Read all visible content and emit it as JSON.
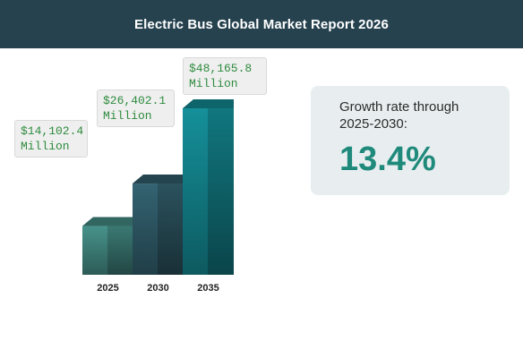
{
  "header": {
    "title": "Electric Bus Global Market Report 2026"
  },
  "chart_data": {
    "type": "bar",
    "categories": [
      "2025",
      "2030",
      "2035"
    ],
    "values": [
      14102.4,
      26402.1,
      48165.8
    ],
    "data_labels": [
      "$14,102.4 Million",
      "$26,402.1 Million",
      "$48,165.8 Million"
    ],
    "colors": [
      "#3e7f79",
      "#2d5663",
      "#127d86"
    ],
    "grid": false,
    "legend": "none"
  },
  "growth": {
    "label_line1": "Growth rate through",
    "label_line2": "2025-2030:",
    "value": "13.4%"
  }
}
